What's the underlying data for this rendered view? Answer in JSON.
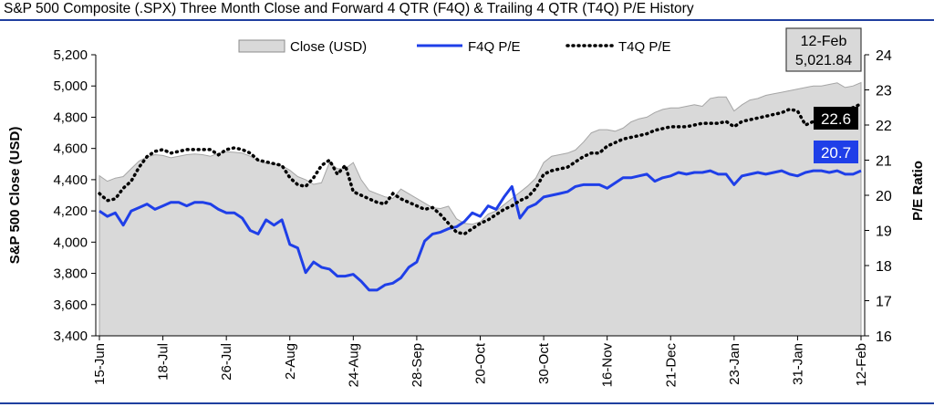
{
  "title": "S&P 500 Composite (.SPX) Three Month Close and Forward 4 QTR (F4Q) & Trailing 4 QTR (T4Q) P/E History",
  "chart_data": {
    "type": "area+line",
    "title": "S&P 500 Composite (.SPX) Three Month Close and Forward 4 QTR (F4Q) & Trailing 4 QTR (T4Q) P/E History",
    "ylabel": "S&P 500 Close (USD)",
    "y2label": "P/E Ratio",
    "ylim": [
      3400,
      5200
    ],
    "y2lim": [
      16,
      24
    ],
    "yticks": [
      "3,400",
      "3,600",
      "3,800",
      "4,000",
      "4,200",
      "4,400",
      "4,600",
      "4,800",
      "5,000",
      "5,200"
    ],
    "y2ticks": [
      "16",
      "17",
      "18",
      "19",
      "20",
      "21",
      "22",
      "23",
      "24"
    ],
    "xtick_labels": [
      "15-Jun",
      "18-Jul",
      "26-Jul",
      "2-Aug",
      "24-Aug",
      "28-Sep",
      "20-Oct",
      "30-Oct",
      "16-Nov",
      "21-Dec",
      "23-Jan",
      "31-Jan",
      "12-Feb"
    ],
    "xtick_index": [
      0,
      8,
      16,
      24,
      32,
      40,
      48,
      56,
      64,
      72,
      80,
      88,
      96
    ],
    "legend": [
      "Close (USD)",
      "F4Q P/E",
      "T4Q P/E"
    ],
    "legend_position": "top-center",
    "grid": false,
    "colors": {
      "close": "#d9d9d9",
      "f4q": "#1f3fe8",
      "t4q": "#000000"
    },
    "series": [
      {
        "name": "Close (USD)",
        "axis": "left",
        "values": [
          4425,
          4390,
          4410,
          4420,
          4470,
          4520,
          4545,
          4560,
          4555,
          4540,
          4550,
          4560,
          4565,
          4560,
          4550,
          4570,
          4580,
          4575,
          4570,
          4550,
          4520,
          4505,
          4500,
          4490,
          4460,
          4420,
          4400,
          4370,
          4380,
          4510,
          4470,
          4470,
          4510,
          4400,
          4330,
          4310,
          4290,
          4280,
          4340,
          4310,
          4280,
          4250,
          4220,
          4215,
          4230,
          4150,
          4120,
          4115,
          4130,
          4180,
          4200,
          4240,
          4280,
          4320,
          4360,
          4410,
          4510,
          4550,
          4560,
          4570,
          4590,
          4640,
          4700,
          4720,
          4720,
          4710,
          4730,
          4770,
          4790,
          4800,
          4830,
          4850,
          4860,
          4860,
          4870,
          4880,
          4870,
          4920,
          4930,
          4930,
          4840,
          4880,
          4910,
          4920,
          4940,
          4950,
          4960,
          4970,
          4980,
          4990,
          5000,
          5000,
          5010,
          5020,
          4990,
          5000,
          5021.84
        ]
      },
      {
        "name": "F4Q P/E",
        "axis": "right",
        "values": [
          19.55,
          19.4,
          19.5,
          19.15,
          19.55,
          19.65,
          19.75,
          19.6,
          19.7,
          19.8,
          19.8,
          19.7,
          19.8,
          19.8,
          19.75,
          19.6,
          19.5,
          19.5,
          19.35,
          19.0,
          18.9,
          19.3,
          19.15,
          19.3,
          18.6,
          18.5,
          17.8,
          18.1,
          17.95,
          17.9,
          17.7,
          17.7,
          17.75,
          17.55,
          17.3,
          17.3,
          17.45,
          17.5,
          17.65,
          17.95,
          18.1,
          18.7,
          18.9,
          18.95,
          19.05,
          19.1,
          19.25,
          19.5,
          19.4,
          19.7,
          19.6,
          19.95,
          20.25,
          19.35,
          19.65,
          19.75,
          19.95,
          20.0,
          20.05,
          20.1,
          20.25,
          20.3,
          20.3,
          20.3,
          20.2,
          20.35,
          20.5,
          20.5,
          20.55,
          20.6,
          20.4,
          20.5,
          20.55,
          20.65,
          20.6,
          20.65,
          20.65,
          20.7,
          20.6,
          20.6,
          20.3,
          20.55,
          20.6,
          20.65,
          20.6,
          20.65,
          20.7,
          20.6,
          20.55,
          20.65,
          20.7,
          20.7,
          20.65,
          20.7,
          20.6,
          20.6,
          20.7
        ]
      },
      {
        "name": "T4Q P/E",
        "axis": "right",
        "values": [
          20.05,
          19.85,
          19.9,
          20.2,
          20.4,
          20.8,
          21.1,
          21.25,
          21.3,
          21.2,
          21.25,
          21.3,
          21.3,
          21.3,
          21.3,
          21.15,
          21.3,
          21.35,
          21.3,
          21.2,
          21.0,
          20.95,
          20.9,
          20.85,
          20.5,
          20.3,
          20.25,
          20.5,
          20.85,
          21.0,
          20.6,
          20.85,
          20.1,
          20.0,
          19.9,
          19.8,
          19.75,
          20.05,
          19.9,
          19.8,
          19.7,
          19.6,
          19.65,
          19.45,
          19.2,
          18.95,
          18.9,
          19.05,
          19.2,
          19.3,
          19.45,
          19.6,
          19.7,
          19.85,
          19.95,
          20.2,
          20.6,
          20.7,
          20.75,
          20.8,
          20.95,
          21.1,
          21.2,
          21.2,
          21.4,
          21.5,
          21.6,
          21.65,
          21.7,
          21.75,
          21.85,
          21.9,
          21.95,
          21.95,
          21.95,
          22.0,
          22.05,
          22.05,
          22.05,
          22.1,
          21.95,
          22.1,
          22.15,
          22.2,
          22.25,
          22.3,
          22.35,
          22.45,
          22.4,
          22.0,
          22.1,
          22.25,
          22.3,
          22.35,
          22.4,
          22.5,
          22.6
        ]
      }
    ],
    "annotations": {
      "date_box": {
        "date": "12-Feb",
        "close": "5,021.84"
      },
      "t4q_label": "22.6",
      "f4q_label": "20.7"
    }
  }
}
